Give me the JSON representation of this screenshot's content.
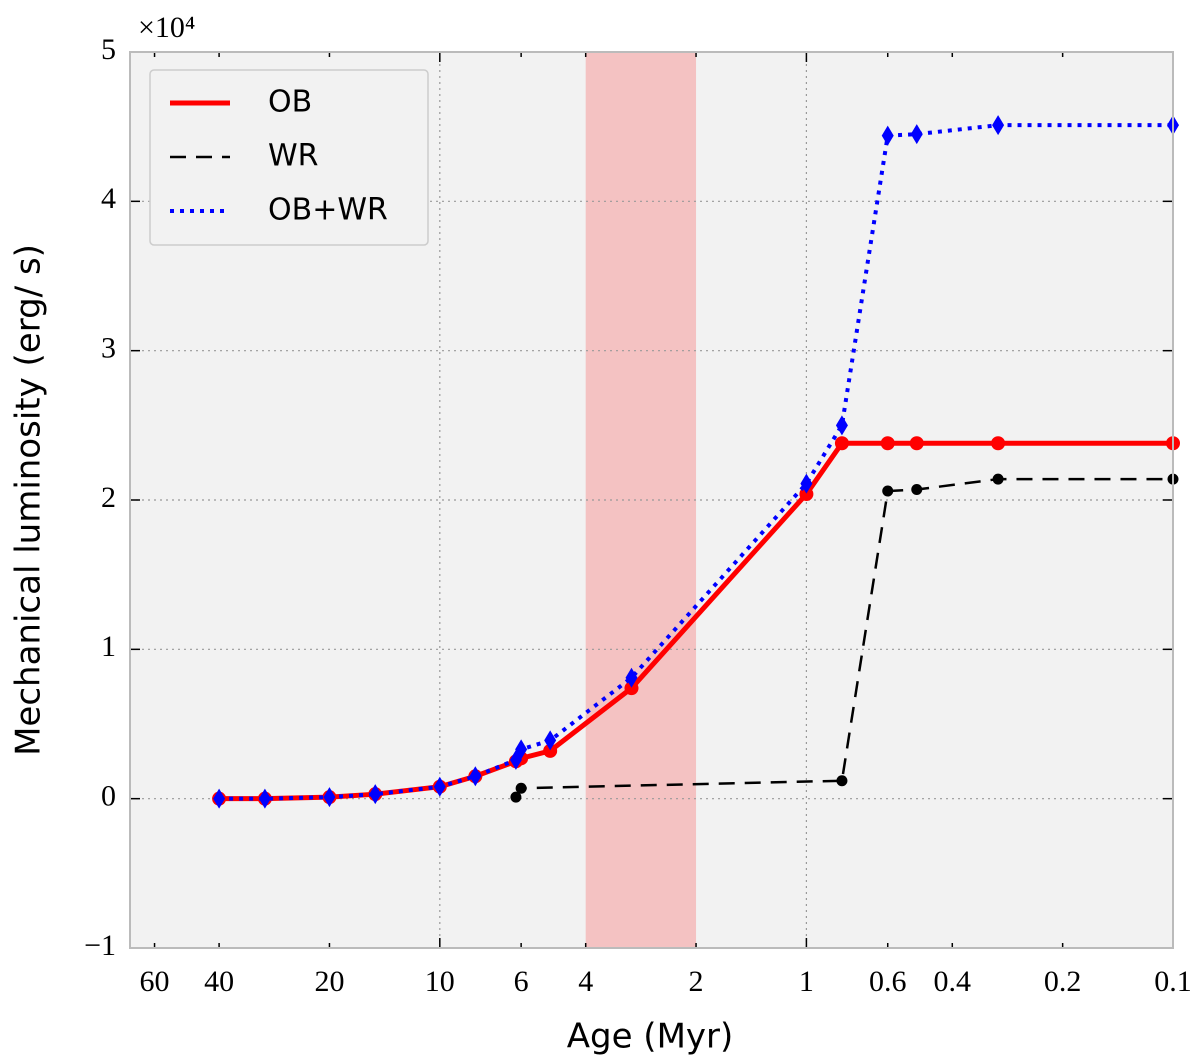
{
  "chart_data": {
    "type": "line",
    "x_label": "Age (Myr)",
    "y_label": "Mechanical luminosity (erg/ s)",
    "y_offset_label": "×10⁴",
    "xscale": "log",
    "xlim": [
      70,
      0.1
    ],
    "xticks": [
      60,
      40,
      20,
      10,
      6,
      4,
      2,
      1,
      0.6,
      0.4,
      0.2,
      0.1
    ],
    "ylim": [
      -1,
      5
    ],
    "yticks": [
      {
        "value": -1,
        "label": "−1"
      },
      0,
      1,
      2,
      3,
      4,
      5
    ],
    "grid": true,
    "legend": "upper left",
    "shaded_region": {
      "x": [
        4,
        2
      ],
      "color": "#f4c2c2"
    },
    "series": [
      {
        "name": "OB",
        "color": "#ff0000",
        "linestyle": "solid",
        "marker": "circle",
        "x": [
          40,
          30,
          20,
          15,
          10,
          8,
          6.2,
          6.0,
          5,
          3,
          1,
          0.8,
          0.6,
          0.5,
          0.3,
          0.1
        ],
        "values": [
          0,
          0,
          0.01,
          0.03,
          0.08,
          0.15,
          0.25,
          0.27,
          0.32,
          0.74,
          2.04,
          2.38,
          2.38,
          2.38,
          2.38,
          2.38
        ]
      },
      {
        "name": "WR",
        "color": "#000000",
        "linestyle": "dashed",
        "marker": "circle",
        "x": [
          6.2,
          6.0,
          0.8,
          0.6,
          0.5,
          0.3,
          0.1
        ],
        "values": [
          0.01,
          0.07,
          0.12,
          2.06,
          2.07,
          2.14,
          2.14
        ]
      },
      {
        "name": "OB+WR",
        "color": "#0000ff",
        "linestyle": "dotted",
        "marker": "diamond",
        "x": [
          40,
          30,
          20,
          15,
          10,
          8,
          6.2,
          6.0,
          5,
          3,
          1,
          0.8,
          0.6,
          0.5,
          0.3,
          0.1
        ],
        "values": [
          0,
          0,
          0.01,
          0.03,
          0.08,
          0.15,
          0.26,
          0.33,
          0.39,
          0.81,
          2.11,
          2.5,
          4.44,
          4.45,
          4.51,
          4.51
        ]
      }
    ]
  }
}
